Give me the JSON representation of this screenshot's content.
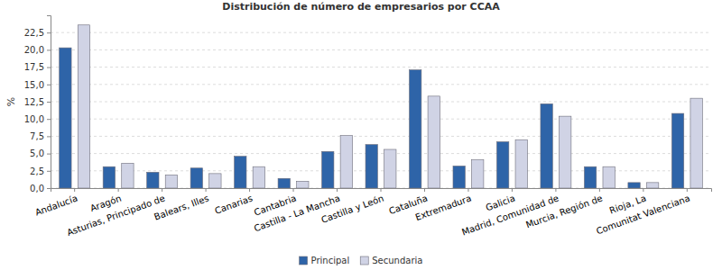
{
  "chart_data": {
    "type": "bar",
    "title": "Distribución de número de empresarios por CCAA",
    "y_label": "%",
    "categories": [
      "Andalucía",
      "Aragón",
      "Asturias, Principado de",
      "Balears, Illes",
      "Canarias",
      "Cantabria",
      "Castilla - La Mancha",
      "Castilla y León",
      "Cataluña",
      "Extremadura",
      "Galicia",
      "Madrid, Comunidad de",
      "Murcia, Región de",
      "Rioja, La",
      "Comunitat Valenciana"
    ],
    "series": [
      {
        "name": "Principal",
        "color": "#2e64a8",
        "values": [
          20.3,
          3.1,
          2.3,
          2.9,
          4.6,
          1.4,
          5.3,
          6.3,
          17.1,
          3.2,
          6.7,
          12.2,
          3.1,
          0.8,
          10.8
        ]
      },
      {
        "name": "Secundaria",
        "color": "#d0d3e5",
        "values": [
          23.6,
          3.6,
          1.9,
          2.1,
          3.1,
          1.0,
          7.6,
          5.6,
          13.3,
          4.1,
          7.0,
          10.4,
          3.1,
          0.8,
          13.0
        ]
      }
    ],
    "ylim": [
      0,
      25
    ],
    "yticks": [
      {
        "value": 0,
        "label": "0,0"
      },
      {
        "value": 2.5,
        "label": "2,5"
      },
      {
        "value": 5,
        "label": "5,0"
      },
      {
        "value": 7.5,
        "label": "7,5"
      },
      {
        "value": 10,
        "label": "10,0"
      },
      {
        "value": 12.5,
        "label": "12,5"
      },
      {
        "value": 15,
        "label": "15,0"
      },
      {
        "value": 17.5,
        "label": "17,5"
      },
      {
        "value": 20,
        "label": "20,0"
      },
      {
        "value": 22.5,
        "label": "22,5"
      }
    ],
    "grid": true,
    "legend": "bottom"
  }
}
